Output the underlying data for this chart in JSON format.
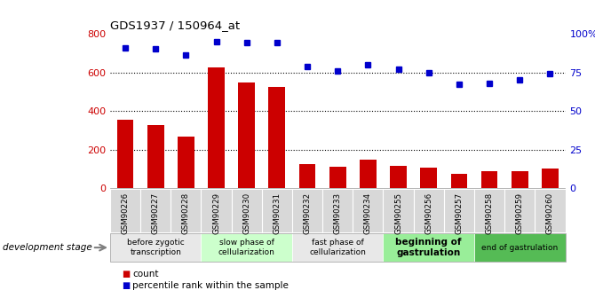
{
  "title": "GDS1937 / 150964_at",
  "samples": [
    "GSM90226",
    "GSM90227",
    "GSM90228",
    "GSM90229",
    "GSM90230",
    "GSM90231",
    "GSM90232",
    "GSM90233",
    "GSM90234",
    "GSM90255",
    "GSM90256",
    "GSM90257",
    "GSM90258",
    "GSM90259",
    "GSM90260"
  ],
  "counts": [
    355,
    325,
    265,
    625,
    545,
    525,
    125,
    110,
    150,
    115,
    105,
    75,
    90,
    90,
    100
  ],
  "percentiles": [
    91,
    90,
    86,
    95,
    94,
    94,
    79,
    76,
    80,
    77,
    75,
    67,
    68,
    70,
    74
  ],
  "bar_color": "#cc0000",
  "dot_color": "#0000cc",
  "ylim_left": [
    0,
    800
  ],
  "ylim_right": [
    0,
    100
  ],
  "yticks_left": [
    0,
    200,
    400,
    600,
    800
  ],
  "yticks_right": [
    0,
    25,
    50,
    75,
    100
  ],
  "ytick_labels_right": [
    "0",
    "25",
    "50",
    "75",
    "100%"
  ],
  "grid_values": [
    200,
    400,
    600
  ],
  "stages": [
    {
      "label": "before zygotic\ntranscription",
      "start": 0,
      "end": 3,
      "color": "#e8e8e8"
    },
    {
      "label": "slow phase of\ncellularization",
      "start": 3,
      "end": 6,
      "color": "#ccffcc"
    },
    {
      "label": "fast phase of\ncellularization",
      "start": 6,
      "end": 9,
      "color": "#e8e8e8"
    },
    {
      "label": "beginning of\ngastrulation",
      "start": 9,
      "end": 12,
      "color": "#99ee99"
    },
    {
      "label": "end of gastrulation",
      "start": 12,
      "end": 15,
      "color": "#55bb55"
    }
  ],
  "sample_bg_color": "#d8d8d8",
  "dev_stage_label": "development stage",
  "legend_count_label": "count",
  "legend_pct_label": "percentile rank within the sample",
  "bg_color": "#ffffff"
}
